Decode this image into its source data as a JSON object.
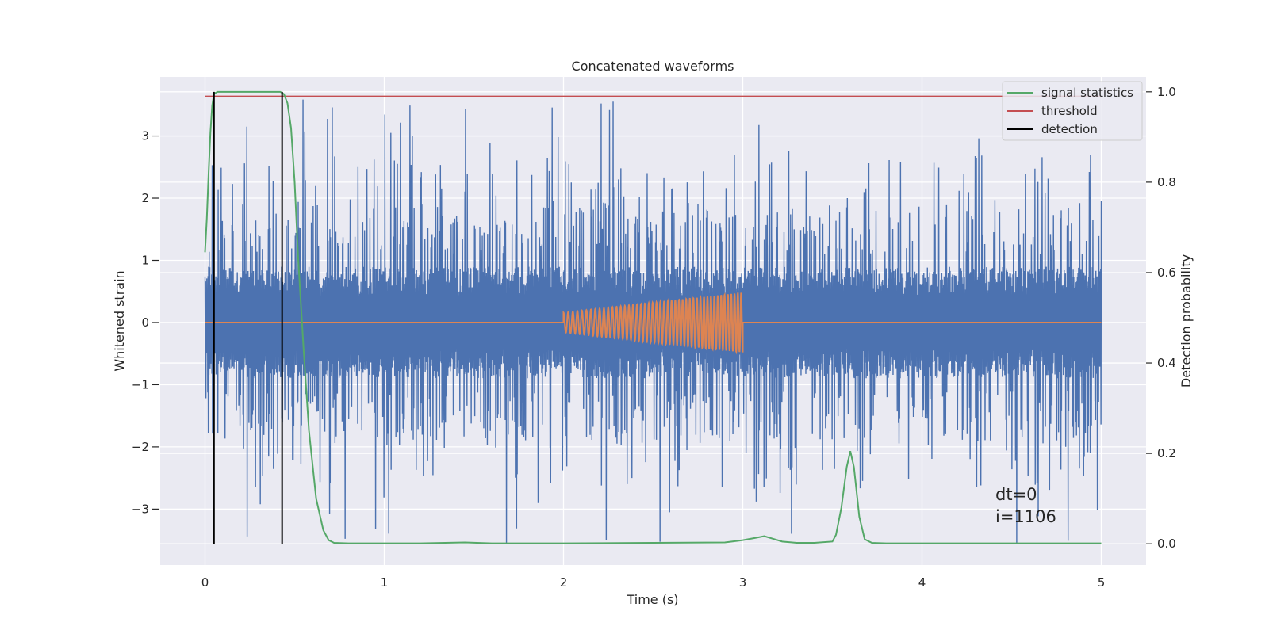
{
  "chart_data": {
    "type": "line",
    "title": "Concatenated waveforms",
    "xlabel": "Time (s)",
    "ylabel": "Whitened strain",
    "ylabel_right": "Detection probability",
    "xlim": [
      -0.25,
      5.25
    ],
    "ylim": [
      -3.9,
      3.95
    ],
    "ylim_right": [
      -0.047,
      1.033
    ],
    "xticks": [
      0,
      1,
      2,
      3,
      4,
      5
    ],
    "xtick_labels": [
      "0",
      "1",
      "2",
      "3",
      "4",
      "5"
    ],
    "yticks": [
      -3,
      -2,
      -1,
      0,
      1,
      2,
      3
    ],
    "ytick_labels": [
      "−3",
      "−2",
      "−1",
      "0",
      "1",
      "2",
      "3"
    ],
    "yticks_right": [
      0.0,
      0.2,
      0.4,
      0.6,
      0.8,
      1.0
    ],
    "ytick_labels_right": [
      "0.0",
      "0.2",
      "0.4",
      "0.6",
      "0.8",
      "1.0"
    ],
    "grid": true,
    "legend_position": "top-right",
    "colors": {
      "background": "#eaeaf2",
      "grid": "#ffffff",
      "strain": "#4c72b0",
      "injected_signal": "#dd8452",
      "signal_statistics": "#55a868",
      "threshold": "#c44e52",
      "detection": "#000000"
    },
    "series": [
      {
        "name": "signal statistics",
        "axis": "right",
        "x": [
          0.0,
          0.01,
          0.02,
          0.03,
          0.04,
          0.05,
          0.06,
          0.07,
          0.08,
          0.1,
          0.2,
          0.3,
          0.4,
          0.42,
          0.44,
          0.46,
          0.48,
          0.5,
          0.52,
          0.55,
          0.58,
          0.62,
          0.66,
          0.69,
          0.72,
          0.8,
          1.0,
          1.2,
          1.45,
          1.6,
          2.0,
          2.5,
          2.9,
          3.0,
          3.07,
          3.12,
          3.17,
          3.22,
          3.3,
          3.4,
          3.5,
          3.52,
          3.55,
          3.58,
          3.6,
          3.62,
          3.65,
          3.68,
          3.72,
          3.8,
          4.0,
          4.5,
          5.0
        ],
        "values": [
          0.645,
          0.72,
          0.82,
          0.91,
          0.97,
          0.995,
          0.998,
          1.0,
          1.0,
          1.0,
          1.0,
          1.0,
          1.0,
          1.0,
          0.995,
          0.975,
          0.92,
          0.8,
          0.63,
          0.43,
          0.25,
          0.1,
          0.03,
          0.008,
          0.002,
          0.001,
          0.001,
          0.001,
          0.003,
          0.001,
          0.001,
          0.002,
          0.003,
          0.008,
          0.013,
          0.017,
          0.011,
          0.005,
          0.002,
          0.002,
          0.005,
          0.02,
          0.08,
          0.17,
          0.205,
          0.17,
          0.06,
          0.01,
          0.002,
          0.001,
          0.001,
          0.001,
          0.001
        ]
      },
      {
        "name": "threshold",
        "axis": "right",
        "x": [
          0.0,
          5.0
        ],
        "values": [
          0.99,
          0.99
        ]
      },
      {
        "name": "detection",
        "axis": "right",
        "vertical_lines_x": [
          0.05,
          0.43
        ],
        "range": [
          0.0,
          1.0
        ]
      },
      {
        "name": "",
        "axis": "left",
        "description_type": "noise",
        "x_range": [
          0.0,
          5.0
        ],
        "core_amplitude": 0.78,
        "peak_max": 3.62,
        "peak_min": -3.55
      },
      {
        "name": "",
        "axis": "left",
        "description_type": "chirp",
        "x_range": [
          2.0,
          3.0
        ],
        "start_amplitude": 0.16,
        "end_amplitude": 0.48,
        "start_cycles_per_s": 38,
        "end_cycles_per_s": 55
      }
    ],
    "legend": [
      "signal statistics",
      "threshold",
      "detection"
    ],
    "annotations": [
      "dt=0",
      "i=1106"
    ]
  }
}
